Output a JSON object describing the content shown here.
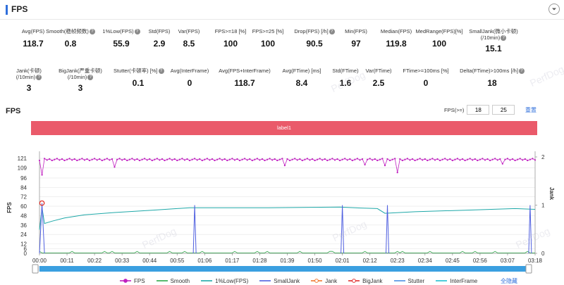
{
  "header": {
    "title": "FPS"
  },
  "metrics_row1": [
    {
      "label": "Avg(FPS)",
      "value": "118.7",
      "help": false
    },
    {
      "label": "Smooth(稳帧频数)",
      "value": "0.8",
      "help": true
    },
    {
      "label": "1%Low(FPS)",
      "value": "55.9",
      "help": true
    },
    {
      "label": "Std(FPS)",
      "value": "2.9",
      "help": false
    },
    {
      "label": "Var(FPS)",
      "value": "8.5",
      "help": false
    },
    {
      "label": "FPS>=18 [%]",
      "value": "100",
      "help": false
    },
    {
      "label": "FPS>=25 [%]",
      "value": "100",
      "help": false
    },
    {
      "label": "Drop(FPS) [/h]",
      "value": "90.5",
      "help": true
    },
    {
      "label": "Min(FPS)",
      "value": "97",
      "help": false
    },
    {
      "label": "Median(FPS)",
      "value": "119.8",
      "help": false
    },
    {
      "label": "MedRange(FPS)[%]",
      "value": "100",
      "help": false
    },
    {
      "label": "SmallJank(微小卡顿)",
      "label2": "(/10min)",
      "value": "15.1",
      "help": true
    }
  ],
  "metrics_row2": [
    {
      "label": "Jank(卡顿)",
      "label2": "(/10min)",
      "value": "3",
      "help": true
    },
    {
      "label": "BigJank(严重卡顿)",
      "label2": "(/10min)",
      "value": "3",
      "help": true
    },
    {
      "label": "Stutter(卡顿率) [%]",
      "value": "0.1",
      "help": true
    },
    {
      "label": "Avg(InterFrame)",
      "value": "0",
      "help": false
    },
    {
      "label": "Avg(FPS+InterFrame)",
      "value": "118.7",
      "help": false
    },
    {
      "label": "Avg(FTime) [ms]",
      "value": "8.4",
      "help": false
    },
    {
      "label": "Std(FTime)",
      "value": "1.6",
      "help": false
    },
    {
      "label": "Var(FTime)",
      "value": "2.5",
      "help": false
    },
    {
      "label": "FTime>=100ms [%]",
      "value": "0",
      "help": false
    },
    {
      "label": "Delta(FTime)>100ms [/h]",
      "value": "18",
      "help": true
    }
  ],
  "chart_section": {
    "title": "FPS",
    "filter_label": "FPS(>=)",
    "filter_value_1": "18",
    "filter_value_2": "25",
    "reset_label": "重置",
    "band_label": "label1",
    "hide_all_label": "全隐藏"
  },
  "watermark_text": "PerfDog",
  "chart_data": {
    "type": "line",
    "x_ticks": [
      "00:00",
      "00:11",
      "00:22",
      "00:33",
      "00:44",
      "00:55",
      "01:06",
      "01:17",
      "01:28",
      "01:39",
      "01:50",
      "02:01",
      "02:12",
      "02:23",
      "02:34",
      "02:45",
      "02:56",
      "03:07",
      "03:18"
    ],
    "y_left_ticks": [
      0,
      6,
      12,
      24,
      36,
      48,
      60,
      72,
      84,
      96,
      109,
      121
    ],
    "y_left_label": "FPS",
    "y_right_ticks": [
      0,
      1,
      2
    ],
    "y_right_label": "Jank",
    "ylim_left": [
      0,
      130
    ],
    "ylim_right": [
      0,
      2
    ],
    "duration_s": 198,
    "legend_position": "bottom",
    "series": [
      {
        "name": "FPS",
        "color": "#c020c0",
        "marker": "dot",
        "baseline": 119.5,
        "dips": [
          [
            1,
            100
          ],
          [
            30,
            110
          ],
          [
            98,
            112
          ],
          [
            130,
            113
          ],
          [
            138,
            112
          ],
          [
            143,
            103
          ],
          [
            185,
            114
          ]
        ]
      },
      {
        "name": "Smooth",
        "color": "#2ea84a",
        "marker": "line",
        "baseline": 0.5
      },
      {
        "name": "1%Low(FPS)",
        "color": "#1ea8a8",
        "marker": "line",
        "points": [
          [
            0,
            30
          ],
          [
            1,
            58
          ],
          [
            2,
            38
          ],
          [
            5,
            41
          ],
          [
            10,
            45
          ],
          [
            18,
            49
          ],
          [
            30,
            52
          ],
          [
            45,
            55
          ],
          [
            55,
            57
          ],
          [
            60,
            58
          ],
          [
            75,
            58
          ],
          [
            90,
            58
          ],
          [
            105,
            58.5
          ],
          [
            120,
            59
          ],
          [
            126,
            58
          ],
          [
            135,
            57
          ],
          [
            138,
            51
          ],
          [
            150,
            53
          ],
          [
            170,
            55
          ],
          [
            190,
            57
          ],
          [
            198,
            56
          ]
        ]
      },
      {
        "name": "SmallJank",
        "color": "#5060e0",
        "marker": "line",
        "spikes": [
          [
            62,
            1
          ],
          [
            121,
            1
          ],
          [
            139,
            1
          ],
          [
            196,
            1
          ]
        ]
      },
      {
        "name": "Jank",
        "color": "#f07830",
        "marker": "circle",
        "events": [
          [
            1,
            64
          ]
        ]
      },
      {
        "name": "BigJank",
        "color": "#e03030",
        "marker": "circle",
        "events": [
          [
            1,
            64
          ]
        ]
      },
      {
        "name": "Stutter",
        "color": "#4a90e2",
        "marker": "line"
      },
      {
        "name": "InterFrame",
        "color": "#20c0d0",
        "marker": "line"
      }
    ]
  }
}
